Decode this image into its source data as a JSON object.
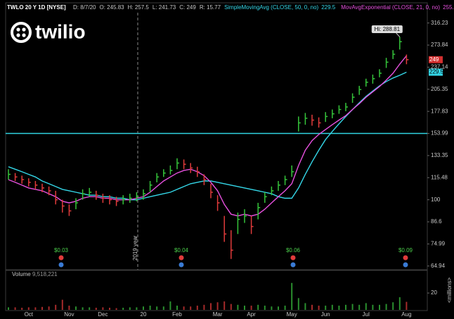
{
  "chart_data": [
    {
      "type": "ohlc",
      "title": "TWLO 20 Y 1D [NYSE]",
      "quote": [
        "D: 8/7/20",
        "O: 245.83",
        "H: 257.5",
        "L: 241.73",
        "C: 249",
        "R: 15.77"
      ],
      "logo": "twilio",
      "year_marker": "2019 year",
      "high_label": "Hi: 288.81",
      "earnings": [
        "$0.03",
        "$0.04",
        "$0.06",
        "$0.09"
      ],
      "categories": [
        null,
        null,
        null,
        "Oct",
        null,
        null,
        null,
        null,
        null,
        "Nov",
        null,
        null,
        null,
        null,
        "Dec",
        null,
        null,
        null,
        null,
        null,
        "20",
        null,
        null,
        null,
        null,
        "Feb",
        null,
        null,
        null,
        null,
        null,
        "Mar",
        null,
        null,
        null,
        null,
        "Apr",
        null,
        null,
        null,
        null,
        null,
        "May",
        null,
        null,
        null,
        null,
        "Jun",
        null,
        null,
        null,
        null,
        null,
        "Jul",
        null,
        null,
        null,
        null,
        null,
        "Aug"
      ],
      "high": [
        122,
        119,
        117,
        115,
        113,
        111,
        109,
        106,
        100,
        97,
        101,
        107,
        108,
        106,
        104,
        103,
        102,
        103,
        104,
        105,
        107,
        113,
        119,
        122,
        125,
        131,
        130,
        127,
        124,
        118,
        111,
        103,
        90,
        82,
        92,
        94,
        90,
        98,
        105,
        109,
        113,
        117,
        125,
        172,
        176,
        174,
        171,
        177,
        180,
        185,
        188,
        200,
        210,
        220,
        226,
        234,
        252,
        265,
        288.81,
        257.5
      ],
      "low": [
        114,
        113,
        111,
        109,
        107,
        105,
        103,
        97,
        92,
        90,
        94,
        100,
        102,
        100,
        98,
        97,
        96,
        97,
        98,
        99,
        100,
        105,
        112,
        116,
        118,
        122,
        122,
        119,
        116,
        110,
        101,
        93,
        76,
        68,
        80,
        86,
        80,
        88,
        98,
        103,
        106,
        110,
        116,
        156,
        163,
        162,
        160,
        166,
        170,
        175,
        178,
        188,
        198,
        209,
        213,
        222,
        236,
        250,
        266,
        241.73
      ],
      "close": [
        118,
        116,
        114,
        112,
        110,
        108,
        106,
        100,
        96,
        93,
        98,
        104,
        105,
        103,
        101,
        100,
        99,
        100,
        101,
        102,
        104,
        110,
        116,
        119,
        121,
        127,
        126,
        123,
        120,
        114,
        105,
        98,
        80,
        72,
        88,
        90,
        84,
        95,
        102,
        106,
        110,
        114,
        120,
        165,
        170,
        168,
        165,
        172,
        175,
        180,
        183,
        195,
        205,
        215,
        220,
        228,
        245,
        258,
        280,
        249
      ],
      "up_color": "#35c43a",
      "down_color": "#e03b3b",
      "series": [
        {
          "name": "SimpleMovingAvg (CLOSE, 50, 0, no)",
          "color": "#34d7e8",
          "values": [
            124,
            122,
            120,
            118,
            116,
            113,
            111,
            109,
            107,
            106,
            105,
            104,
            103,
            103,
            102,
            102,
            101,
            101,
            100,
            100,
            101,
            102,
            103,
            104,
            105,
            107,
            109,
            111,
            112,
            113,
            113,
            112,
            111,
            110,
            109,
            108,
            107,
            106,
            105,
            104,
            102,
            101,
            101,
            108,
            118,
            128,
            138,
            148,
            156,
            164,
            172,
            180,
            188,
            196,
            203,
            210,
            216,
            221,
            225,
            229.5
          ]
        },
        {
          "name": "MovAvgExponential (CLOSE, 21, 0, no)",
          "color": "#e650de",
          "values": [
            114,
            112,
            110,
            108,
            107,
            106,
            104,
            102,
            99,
            98,
            99,
            101,
            102,
            102,
            101,
            101,
            100,
            100,
            100,
            101,
            102,
            105,
            109,
            113,
            116,
            119,
            121,
            122,
            120,
            117,
            112,
            106,
            97,
            91,
            90,
            91,
            90,
            91,
            94,
            98,
            102,
            106,
            111,
            125,
            138,
            147,
            153,
            158,
            163,
            168,
            173,
            180,
            187,
            195,
            202,
            209,
            218,
            228,
            242,
            255.38
          ]
        }
      ],
      "hline": 154,
      "hline_color": "#2fd3e0",
      "ylim": [
        63.4,
        359
      ],
      "log_scale": true,
      "yticks": [
        316.23,
        273.84,
        237.14,
        205.35,
        177.83,
        153.99,
        133.35,
        115.48,
        100,
        86.6,
        74.99,
        64.94
      ]
    },
    {
      "type": "volume",
      "title": "Volume",
      "current": "9,518,221",
      "ylabel": "<millions>",
      "values": [
        3,
        3,
        2.5,
        3,
        3,
        3.5,
        4,
        6,
        12,
        5,
        4,
        3,
        3,
        2.5,
        3,
        2.5,
        2,
        2.5,
        3,
        3,
        4,
        5,
        4,
        4,
        10,
        5,
        4,
        4,
        5,
        6,
        8,
        9,
        10,
        7,
        6,
        5,
        5,
        6,
        5,
        4,
        4,
        5,
        32,
        14,
        8,
        6,
        5,
        5,
        6,
        5,
        6,
        7,
        6,
        8,
        6,
        6,
        7,
        9,
        15,
        9.518221
      ],
      "ylim": [
        0,
        36
      ],
      "yticks": [
        20
      ]
    }
  ]
}
